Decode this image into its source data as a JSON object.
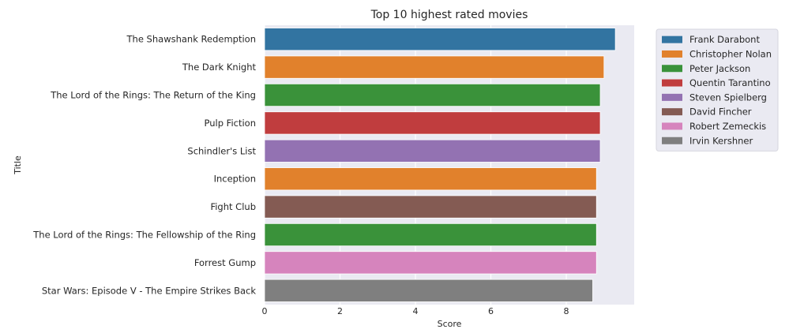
{
  "chart_data": {
    "type": "bar",
    "orientation": "horizontal",
    "title": "Top 10 highest rated movies",
    "xlabel": "Score",
    "ylabel": "Title",
    "xlim": [
      0,
      9.8
    ],
    "xticks": [
      "0",
      "2",
      "4",
      "6",
      "8"
    ],
    "grid": true,
    "legend_position": "outside-right",
    "categories": [
      "The Shawshank Redemption",
      "The Dark Knight",
      "The Lord of the Rings: The Return of the King",
      "Pulp Fiction",
      "Schindler's List",
      "Inception",
      "Fight Club",
      "The Lord of the Rings: The Fellowship of the Ring",
      "Forrest Gump",
      "Star Wars: Episode V - The Empire Strikes Back"
    ],
    "values": [
      9.3,
      9.0,
      8.9,
      8.9,
      8.9,
      8.8,
      8.8,
      8.8,
      8.8,
      8.7
    ],
    "bar_directors": [
      "Frank Darabont",
      "Christopher Nolan",
      "Peter Jackson",
      "Quentin Tarantino",
      "Steven Spielberg",
      "Christopher Nolan",
      "David Fincher",
      "Peter Jackson",
      "Robert Zemeckis",
      "Irvin Kershner"
    ],
    "legend": [
      {
        "name": "Frank Darabont",
        "color": "#3274a1"
      },
      {
        "name": "Christopher Nolan",
        "color": "#e1812c"
      },
      {
        "name": "Peter Jackson",
        "color": "#3a923a"
      },
      {
        "name": "Quentin Tarantino",
        "color": "#c03d3e"
      },
      {
        "name": "Steven Spielberg",
        "color": "#9372b2"
      },
      {
        "name": "David Fincher",
        "color": "#845b53"
      },
      {
        "name": "Robert Zemeckis",
        "color": "#d684bd"
      },
      {
        "name": "Irvin Kershner",
        "color": "#7f7f7f"
      }
    ],
    "plot_background": "#eaeaf2"
  }
}
